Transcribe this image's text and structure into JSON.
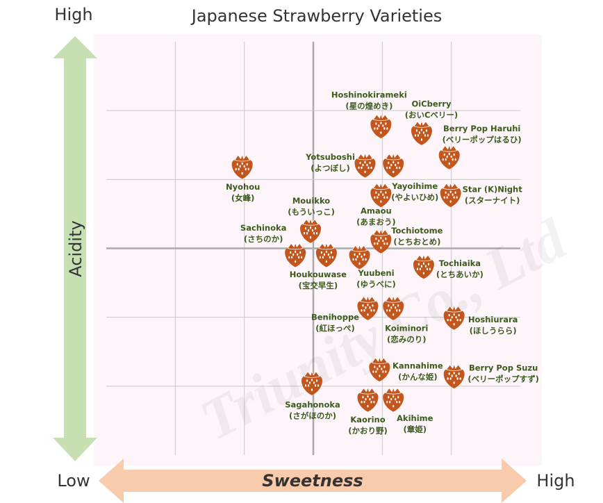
{
  "chart_data": {
    "type": "scatter",
    "title": "Japanese Strawberry Varieties",
    "x_label": "Sweetness",
    "y_label": "Acidity",
    "low_label": "Low",
    "x_high_label": "High",
    "y_high_label": "High",
    "watermark": "Triunity Co., Ltd",
    "xlim": [
      0,
      6
    ],
    "ylim": [
      0,
      6
    ],
    "grid": true,
    "color": "#c2561c",
    "point_labels": [
      "Hoshinokirameki",
      "OiCberry",
      "Berry Pop Haruhi",
      "Yotsuboshi",
      "Yayoihime",
      "Amaou",
      "Star (K)Night",
      "Nyohou",
      "Mouikko",
      "Tochiotome",
      "Sachinoka",
      "Houkouwase",
      "Yuubeni",
      "Tochiaika",
      "Benihoppe",
      "Koiminori",
      "Hoshiurara",
      "Kannahime",
      "Berry Pop Suzu",
      "Sagahonoka",
      "Kaorino",
      "Akihime"
    ],
    "point_labels_jp": [
      "(星の煌めき)",
      "(おいCベリー)",
      "(ベリーポップはるひ)",
      "(よつぼし)",
      "(やよいひめ)",
      "(あまおう)",
      "(スターナイト)",
      "(女峰)",
      "(もういっこ)",
      "(とちおとめ)",
      "(さちのか)",
      "(宝交早生)",
      "(ゆうべに)",
      "(とちあいか)",
      "(紅ほっぺ)",
      "(恋みのり)",
      "(ほしうらら)",
      "(かんな姫)",
      "(ベリーポップすず)",
      "(さがほのか)",
      "(かおり野)",
      "(章姫)"
    ],
    "x": [
      3.98,
      4.57,
      4.97,
      3.75,
      4.16,
      3.98,
      4.99,
      1.97,
      2.96,
      3.98,
      2.74,
      3.19,
      3.67,
      4.6,
      3.79,
      4.16,
      5.04,
      3.96,
      5.04,
      2.98,
      3.79,
      4.16
    ],
    "values": [
      4.77,
      4.67,
      4.32,
      4.2,
      4.2,
      3.77,
      3.77,
      4.18,
      3.25,
      3.1,
      2.9,
      2.9,
      2.87,
      2.73,
      2.13,
      2.13,
      1.99,
      1.24,
      1.14,
      1.04,
      0.8,
      0.8
    ]
  }
}
